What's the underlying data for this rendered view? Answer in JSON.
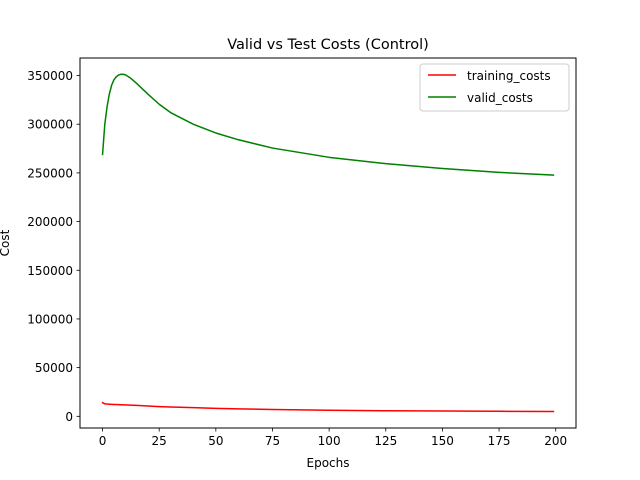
{
  "chart_data": {
    "type": "line",
    "title": "Valid vs Test Costs (Control)",
    "xlabel": "Epochs",
    "ylabel": "Cost",
    "xlim": [
      -9.95,
      208.95
    ],
    "ylim": [
      -12000,
      368000
    ],
    "xticks": [
      0,
      25,
      50,
      75,
      100,
      125,
      150,
      175,
      200
    ],
    "yticks": [
      0,
      50000,
      100000,
      150000,
      200000,
      250000,
      300000,
      350000
    ],
    "grid": false,
    "legend_position": "upper-right",
    "x": [
      0,
      1,
      2,
      3,
      4,
      5,
      6,
      7,
      8,
      9,
      10,
      12,
      15,
      20,
      25,
      30,
      40,
      50,
      60,
      75,
      100,
      125,
      150,
      175,
      199
    ],
    "series": [
      {
        "name": "training_costs",
        "color": "#ff0000",
        "values": [
          14000,
          12800,
          12600,
          12450,
          12300,
          12200,
          12100,
          12000,
          11900,
          11800,
          11700,
          11500,
          11200,
          10600,
          10000,
          9600,
          8900,
          8200,
          7700,
          7000,
          6200,
          5700,
          5400,
          5150,
          4950
        ]
      },
      {
        "name": "valid_costs",
        "color": "#008000",
        "values": [
          269000,
          300000,
          318000,
          331000,
          340000,
          345500,
          348500,
          350500,
          351200,
          351300,
          350800,
          348000,
          342000,
          331000,
          320500,
          312000,
          300000,
          291000,
          284000,
          275500,
          266000,
          259500,
          254500,
          250500,
          247800
        ]
      }
    ]
  }
}
